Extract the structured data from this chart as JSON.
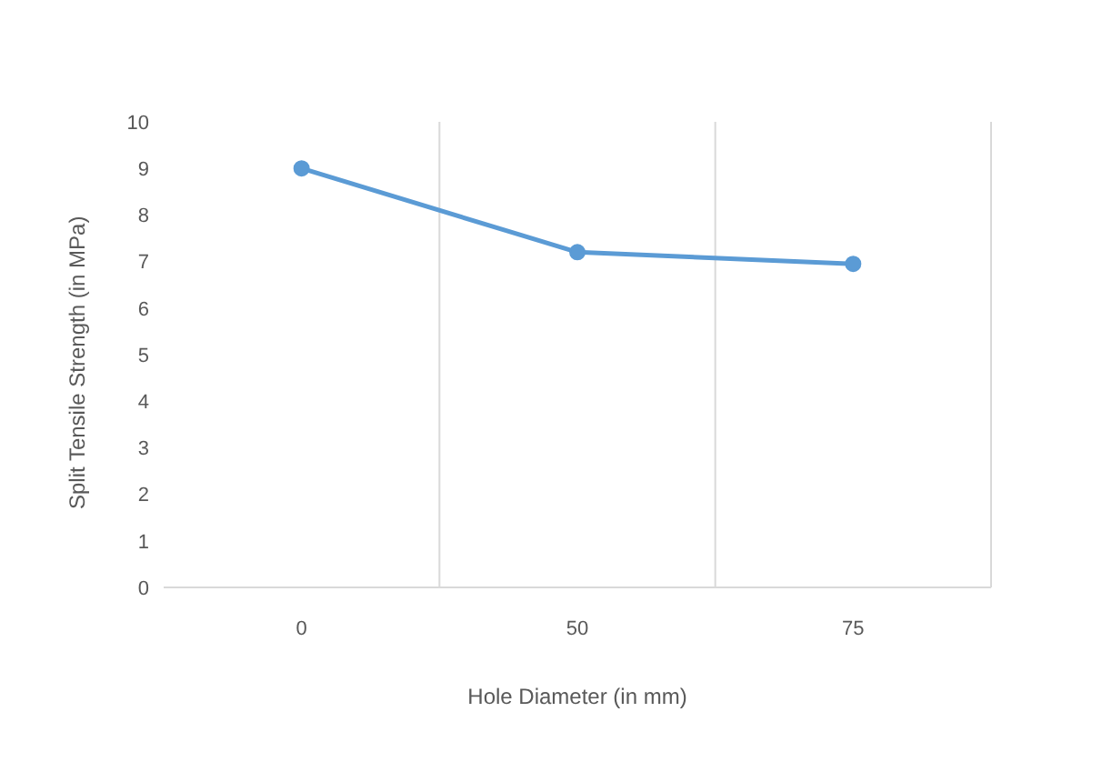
{
  "chart_data": {
    "type": "line",
    "xlabel": "Hole Diameter (in mm)",
    "ylabel": "Split Tensile Strength (in MPa)",
    "categories": [
      "0",
      "50",
      "75"
    ],
    "series": [
      {
        "color": "#5b9bd5",
        "values": [
          9,
          7.2,
          6.95
        ]
      }
    ],
    "ylim": [
      0,
      10
    ],
    "yticks": [
      0,
      1,
      2,
      3,
      4,
      5,
      6,
      7,
      8,
      9,
      10
    ],
    "grid": "x",
    "marker": "circle",
    "line_style": "solid",
    "legend": false
  }
}
